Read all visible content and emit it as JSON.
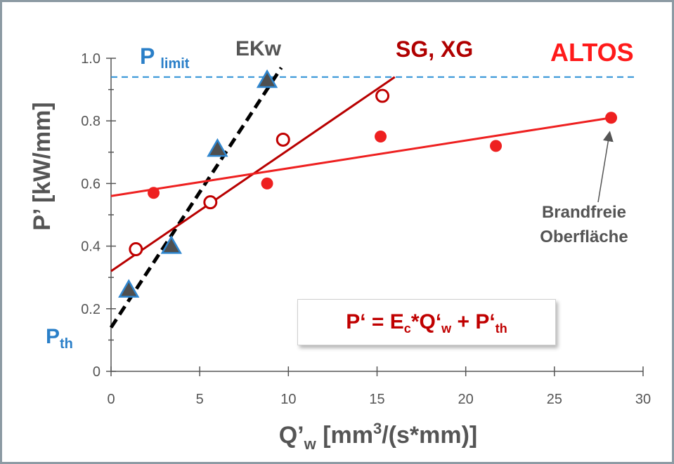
{
  "chart_data": {
    "type": "scatter",
    "xlabel": "Q’w [mm³/(s*mm)]",
    "xlabel_main": "Q’",
    "xlabel_sub": "w",
    "xlabel_rest": " [mm",
    "xlabel_sup": "3",
    "xlabel_end": "/(s*mm)]",
    "ylabel": "P’ [kW/mm]",
    "xlim": [
      0,
      30
    ],
    "ylim": [
      0,
      1.0
    ],
    "xticks": [
      "0",
      "5",
      "10",
      "15",
      "20",
      "25",
      "30"
    ],
    "yticks": [
      "0",
      "0.2",
      "0.4",
      "0.6",
      "0.8",
      "1.0"
    ],
    "grid": false,
    "series": [
      {
        "name": "EKw",
        "marker": "triangle",
        "color": "#4a7090",
        "x": [
          1.0,
          3.4,
          6.0,
          8.8
        ],
        "y": [
          0.26,
          0.4,
          0.71,
          0.93
        ],
        "fit": {
          "x": [
            0.0,
            9.6
          ],
          "y": [
            0.14,
            0.97
          ],
          "style": "dashed",
          "color": "#000000"
        }
      },
      {
        "name": "SG, XG",
        "marker": "open-circle",
        "color": "#c00000",
        "x": [
          1.4,
          5.6,
          9.7,
          15.3
        ],
        "y": [
          0.39,
          0.54,
          0.74,
          0.88
        ],
        "fit": {
          "x": [
            0.0,
            16.0
          ],
          "y": [
            0.32,
            0.94
          ],
          "style": "solid",
          "color": "#b80000"
        }
      },
      {
        "name": "ALTOS",
        "marker": "filled-circle",
        "color": "#ee2020",
        "x": [
          2.4,
          8.8,
          15.2,
          21.7,
          28.2
        ],
        "y": [
          0.57,
          0.6,
          0.75,
          0.72,
          0.81
        ],
        "fit": {
          "x": [
            0.0,
            28.2
          ],
          "y": [
            0.56,
            0.81
          ],
          "style": "solid",
          "color": "#ee2020"
        }
      }
    ],
    "reference_line": {
      "y": 0.94,
      "x": [
        0.0,
        29.6
      ],
      "color": "#2a8fd6"
    },
    "annotations": {
      "p_limit_main": "P",
      "p_limit_sub": "limit",
      "p_th_main": "P",
      "p_th_sub": "th",
      "series_label_ekw": "EKw",
      "series_label_sgxg": "SG, XG",
      "series_label_altos": "ALTOS",
      "brandfreie_line1": "Brandfreie",
      "brandfreie_line2": "Oberfläche",
      "arrow_target": {
        "x": 28.2,
        "y": 0.81
      }
    },
    "formula": {
      "p": "P‘ = E",
      "c": "c",
      "mid": "*Q‘",
      "w": "w",
      "plus": " + P‘",
      "th": "th"
    }
  }
}
